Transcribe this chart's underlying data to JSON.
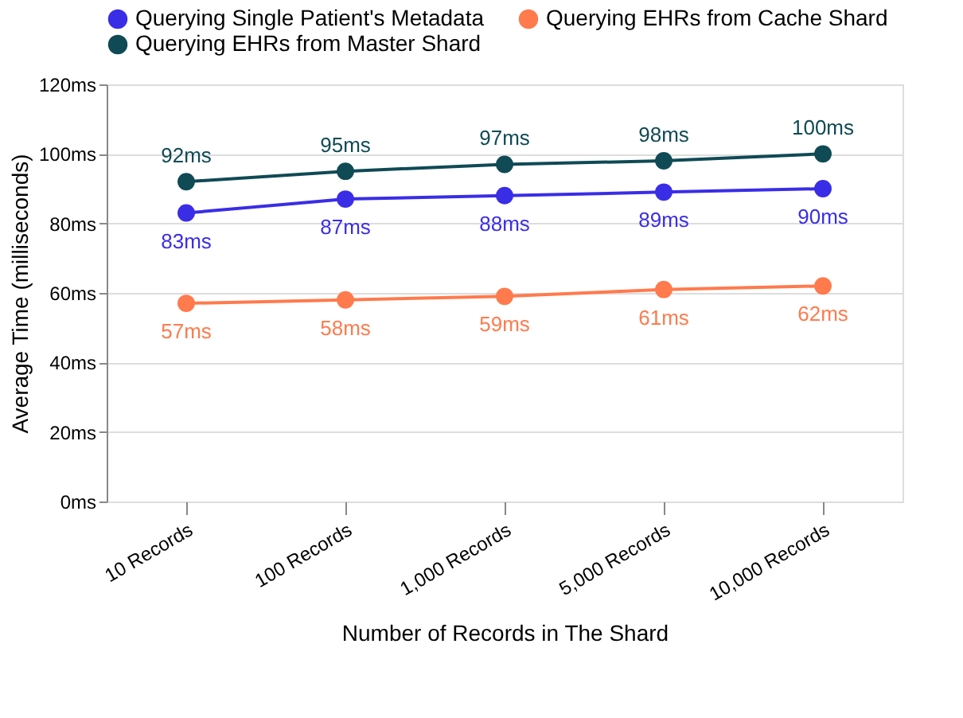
{
  "chart_data": {
    "type": "line",
    "xlabel": "Number of Records in The Shard",
    "ylabel": "Average Time (milliseconds)",
    "categories": [
      "10 Records",
      "100 Records",
      "1,000 Records",
      "5,000 Records",
      "10,000 Records"
    ],
    "series": [
      {
        "name": "Querying Single Patient's Metadata",
        "color": "#3a2de6",
        "values": [
          83,
          87,
          88,
          89,
          90
        ],
        "value_labels": [
          "83ms",
          "87ms",
          "88ms",
          "89ms",
          "90ms"
        ]
      },
      {
        "name": "Querying EHRs from Cache Shard",
        "color": "#ff7a4d",
        "values": [
          57,
          58,
          59,
          61,
          62
        ],
        "value_labels": [
          "57ms",
          "58ms",
          "59ms",
          "61ms",
          "62ms"
        ]
      },
      {
        "name": "Querying EHRs from Master Shard",
        "color": "#0f4a55",
        "values": [
          92,
          95,
          97,
          98,
          100
        ],
        "value_labels": [
          "92ms",
          "95ms",
          "97ms",
          "98ms",
          "100ms"
        ]
      }
    ],
    "ylim": [
      0,
      120
    ],
    "yticks": [
      {
        "value": 0,
        "label": "0ms"
      },
      {
        "value": 20,
        "label": "20ms"
      },
      {
        "value": 40,
        "label": "40ms"
      },
      {
        "value": 60,
        "label": "60ms"
      },
      {
        "value": 80,
        "label": "80ms"
      },
      {
        "value": 100,
        "label": "100ms"
      },
      {
        "value": 120,
        "label": "120ms"
      }
    ],
    "grid": "y",
    "legend": "top",
    "marker": "circle",
    "line_style": "solid"
  }
}
